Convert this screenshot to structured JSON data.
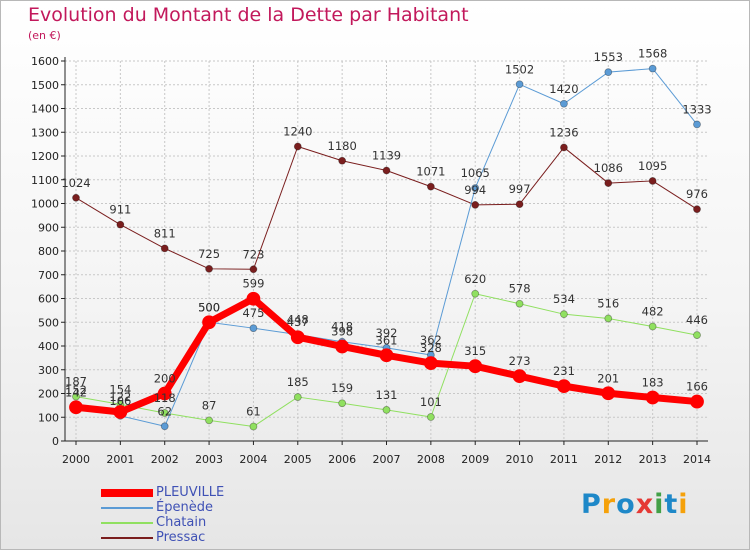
{
  "title": "Evolution du Montant de la Dette par Habitant",
  "subtitle": "(en €)",
  "logo": {
    "text": "Proxiti",
    "colors": [
      "#1e88c8",
      "#f5a10a",
      "#1e88c8",
      "#e53935",
      "#43a047",
      "#1e88c8",
      "#f5a10a"
    ]
  },
  "chart_data": {
    "type": "line",
    "x": [
      "2000",
      "2001",
      "2002",
      "2003",
      "2004",
      "2005",
      "2006",
      "2007",
      "2008",
      "2009",
      "2010",
      "2011",
      "2012",
      "2013",
      "2014"
    ],
    "ylim": [
      0,
      1600
    ],
    "yticks": [
      0,
      100,
      200,
      300,
      400,
      500,
      600,
      700,
      800,
      900,
      1000,
      1100,
      1200,
      1300,
      1400,
      1500,
      1600
    ],
    "grid": true,
    "legend_position": "bottom-left",
    "series": [
      {
        "name": "PLEUVILLE",
        "color": "#ff0000",
        "labelColor": "#3f51b5",
        "width": 7,
        "marker": 6.5,
        "showLabels": true,
        "values": [
          142,
          122,
          200,
          500,
          599,
          437,
          398,
          361,
          328,
          315,
          273,
          231,
          201,
          183,
          166
        ]
      },
      {
        "name": "Épenède",
        "color": "#5b9bd5",
        "labelColor": "#3f51b5",
        "width": 1,
        "marker": 3.5,
        "showLabels": false,
        "values": [
          152,
          106,
          62,
          500,
          475,
          448,
          418,
          392,
          362,
          1065,
          1502,
          1420,
          1553,
          1568,
          1333
        ]
      },
      {
        "name": "Chatain",
        "color": "#90e060",
        "labelColor": "#3f51b5",
        "width": 1,
        "marker": 3.5,
        "showLabels": true,
        "values": [
          187,
          154,
          118,
          87,
          61,
          185,
          159,
          131,
          101,
          620,
          578,
          534,
          516,
          482,
          446
        ]
      },
      {
        "name": "Pressac",
        "color": "#7a1e1e",
        "labelColor": "#3f51b5",
        "width": 1,
        "marker": 3.5,
        "showLabels": true,
        "values": [
          1024,
          911,
          811,
          725,
          723,
          1240,
          1180,
          1139,
          1071,
          994,
          997,
          1236,
          1086,
          1095,
          976
        ]
      }
    ],
    "point_labels": [
      {
        "series": 3,
        "i": 0,
        "text": "1024"
      },
      {
        "series": 3,
        "i": 1,
        "text": "911"
      },
      {
        "series": 3,
        "i": 2,
        "text": "811"
      },
      {
        "series": 3,
        "i": 3,
        "text": "725"
      },
      {
        "series": 3,
        "i": 4,
        "text": "723"
      },
      {
        "series": 3,
        "i": 5,
        "text": "1240"
      },
      {
        "series": 3,
        "i": 6,
        "text": "1180"
      },
      {
        "series": 3,
        "i": 7,
        "text": "1139"
      },
      {
        "series": 3,
        "i": 8,
        "text": "1071"
      },
      {
        "series": 3,
        "i": 9,
        "text": "994"
      },
      {
        "series": 3,
        "i": 10,
        "text": "997"
      },
      {
        "series": 3,
        "i": 11,
        "text": "1236"
      },
      {
        "series": 3,
        "i": 12,
        "text": "1086"
      },
      {
        "series": 3,
        "i": 13,
        "text": "1095"
      },
      {
        "series": 3,
        "i": 14,
        "text": "976"
      },
      {
        "series": 1,
        "i": 9,
        "text": "1065"
      },
      {
        "series": 1,
        "i": 10,
        "text": "1502"
      },
      {
        "series": 1,
        "i": 11,
        "text": "1420"
      },
      {
        "series": 1,
        "i": 12,
        "text": "1553"
      },
      {
        "series": 1,
        "i": 13,
        "text": "1568"
      },
      {
        "series": 1,
        "i": 14,
        "text": "1333"
      },
      {
        "series": 2,
        "i": 0,
        "text": "187"
      },
      {
        "series": 2,
        "i": 1,
        "text": "154"
      },
      {
        "series": 2,
        "i": 2,
        "text": "118"
      },
      {
        "series": 2,
        "i": 3,
        "text": "87"
      },
      {
        "series": 2,
        "i": 4,
        "text": "61"
      },
      {
        "series": 2,
        "i": 5,
        "text": "185"
      },
      {
        "series": 2,
        "i": 6,
        "text": "159"
      },
      {
        "series": 2,
        "i": 7,
        "text": "131"
      },
      {
        "series": 2,
        "i": 8,
        "text": "101"
      },
      {
        "series": 2,
        "i": 9,
        "text": "620"
      },
      {
        "series": 2,
        "i": 10,
        "text": "578"
      },
      {
        "series": 2,
        "i": 11,
        "text": "534"
      },
      {
        "series": 2,
        "i": 12,
        "text": "516"
      },
      {
        "series": 2,
        "i": 13,
        "text": "482"
      },
      {
        "series": 2,
        "i": 14,
        "text": "446"
      },
      {
        "series": 0,
        "i": 0,
        "text": "142"
      },
      {
        "series": 0,
        "i": 1,
        "text": "122"
      },
      {
        "series": 0,
        "i": 2,
        "text": "200"
      },
      {
        "series": 0,
        "i": 3,
        "text": "500"
      },
      {
        "series": 0,
        "i": 4,
        "text": "599"
      },
      {
        "series": 0,
        "i": 5,
        "text": "437"
      },
      {
        "series": 0,
        "i": 6,
        "text": "398"
      },
      {
        "series": 0,
        "i": 7,
        "text": "361"
      },
      {
        "series": 0,
        "i": 8,
        "text": "328"
      },
      {
        "series": 0,
        "i": 9,
        "text": "315"
      },
      {
        "series": 0,
        "i": 10,
        "text": "273"
      },
      {
        "series": 0,
        "i": 11,
        "text": "231"
      },
      {
        "series": 0,
        "i": 12,
        "text": "201"
      },
      {
        "series": 0,
        "i": 13,
        "text": "183"
      },
      {
        "series": 0,
        "i": 14,
        "text": "166"
      },
      {
        "series": 1,
        "i": 0,
        "text": "152"
      },
      {
        "series": 1,
        "i": 1,
        "text": "106"
      },
      {
        "series": 1,
        "i": 2,
        "text": "62"
      },
      {
        "series": 1,
        "i": 3,
        "text": "500"
      },
      {
        "series": 1,
        "i": 4,
        "text": "475"
      },
      {
        "series": 1,
        "i": 5,
        "text": "448"
      },
      {
        "series": 1,
        "i": 6,
        "text": "418"
      },
      {
        "series": 1,
        "i": 7,
        "text": "392"
      },
      {
        "series": 1,
        "i": 8,
        "text": "362"
      }
    ]
  }
}
